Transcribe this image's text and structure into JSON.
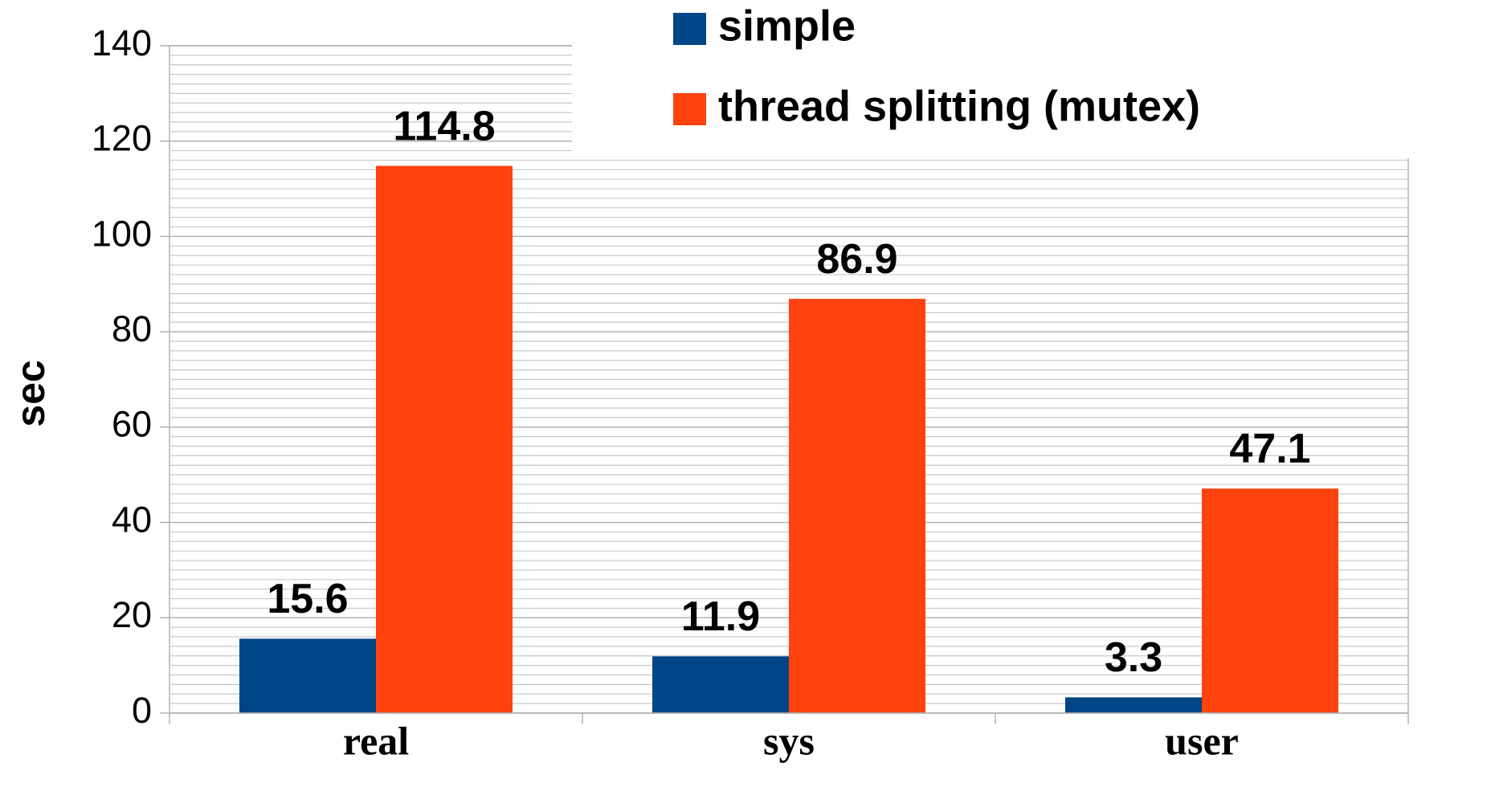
{
  "chart_data": {
    "type": "bar",
    "y_label": "sec",
    "categories": [
      "real",
      "sys",
      "user"
    ],
    "series": [
      {
        "name": "simple",
        "color": "#004586",
        "values": [
          15.6,
          11.9,
          3.3
        ]
      },
      {
        "name": "thread splitting (mutex)",
        "color": "#ff420e",
        "values": [
          114.8,
          86.9,
          47.1
        ]
      }
    ],
    "ylim": [
      0,
      140
    ],
    "yticks": [
      0,
      20,
      40,
      60,
      80,
      100,
      120,
      140
    ],
    "grid": true,
    "legend": "top-right"
  }
}
